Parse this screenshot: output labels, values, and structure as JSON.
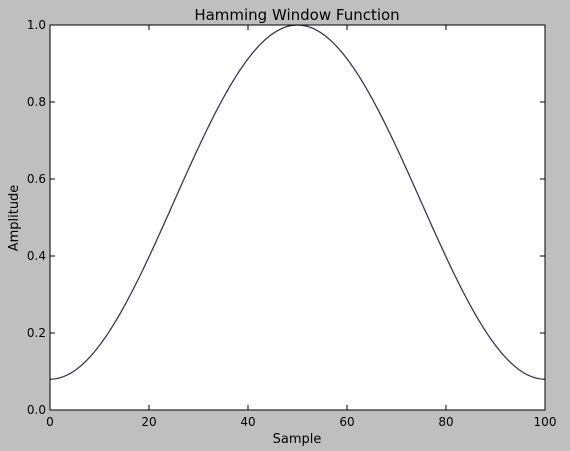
{
  "chart_data": {
    "type": "line",
    "title": "Hamming Window Function",
    "xlabel": "Sample",
    "ylabel": "Amplitude",
    "xlim": [
      0,
      100
    ],
    "ylim": [
      0.0,
      1.0
    ],
    "x_ticks": [
      0,
      20,
      40,
      60,
      80,
      100
    ],
    "x_tick_labels": [
      "0",
      "20",
      "40",
      "60",
      "80",
      "100"
    ],
    "y_ticks": [
      0.0,
      0.2,
      0.4,
      0.6,
      0.8,
      1.0
    ],
    "y_tick_labels": [
      "0.0",
      "0.2",
      "0.4",
      "0.6",
      "0.8",
      "1.0"
    ],
    "grid": false,
    "legend": "none",
    "series": [
      {
        "color": "#3a3a52",
        "x": [
          0,
          5,
          10,
          15,
          20,
          25,
          30,
          35,
          40,
          45,
          50,
          55,
          60,
          65,
          70,
          75,
          80,
          85,
          90,
          95,
          100
        ],
        "y": [
          0.08,
          0.102,
          0.168,
          0.27,
          0.398,
          0.54,
          0.682,
          0.81,
          0.912,
          0.978,
          1.0,
          0.978,
          0.912,
          0.81,
          0.682,
          0.54,
          0.398,
          0.27,
          0.168,
          0.102,
          0.08
        ]
      }
    ],
    "colors": {
      "figure_bg": "#bfbfbf",
      "axes_bg": "#ffffff",
      "axes_edge": "#000000"
    }
  }
}
